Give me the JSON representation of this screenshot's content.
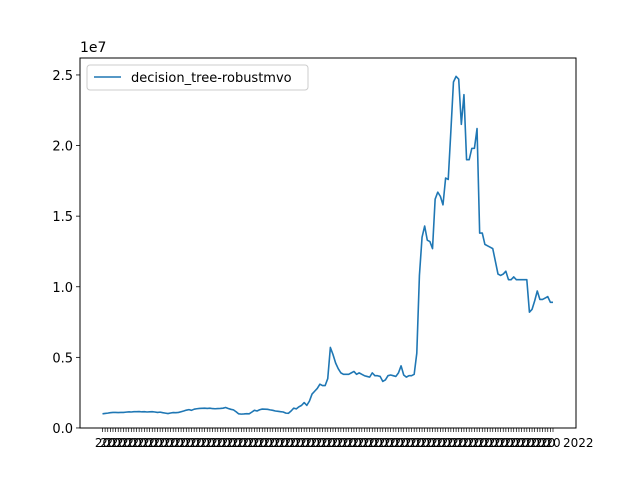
{
  "chart_data": {
    "type": "line",
    "multiplier_label": "1e7",
    "legend_position": "upper-left",
    "grid": false,
    "ylim": [
      -3000.0,
      26200000.0
    ],
    "y_ticks": [
      0,
      5000000,
      10000000,
      15000000,
      20000000,
      25000000
    ],
    "y_tick_labels": [
      "0.0",
      "0.5",
      "1.0",
      "1.5",
      "2.0",
      "2.5"
    ],
    "x_tick_label_fragments": [
      "20",
      "2022"
    ],
    "series": [
      {
        "name": "decision_tree-robustmvo",
        "color": "#1f77b4",
        "values": [
          1000000,
          1030000,
          1050000,
          1080000,
          1100000,
          1100000,
          1090000,
          1100000,
          1100000,
          1120000,
          1140000,
          1130000,
          1150000,
          1150000,
          1160000,
          1140000,
          1150000,
          1130000,
          1140000,
          1150000,
          1130000,
          1100000,
          1120000,
          1080000,
          1050000,
          1020000,
          1060000,
          1090000,
          1080000,
          1100000,
          1150000,
          1200000,
          1260000,
          1300000,
          1250000,
          1330000,
          1360000,
          1380000,
          1390000,
          1400000,
          1380000,
          1400000,
          1370000,
          1360000,
          1370000,
          1380000,
          1400000,
          1450000,
          1380000,
          1320000,
          1280000,
          1150000,
          1000000,
          980000,
          990000,
          1010000,
          1000000,
          1120000,
          1250000,
          1200000,
          1290000,
          1340000,
          1330000,
          1320000,
          1280000,
          1250000,
          1200000,
          1180000,
          1150000,
          1130000,
          1050000,
          1040000,
          1200000,
          1400000,
          1350000,
          1500000,
          1600000,
          1800000,
          1600000,
          1900000,
          2400000,
          2600000,
          2800000,
          3100000,
          3000000,
          3000000,
          3500000,
          5700000,
          5200000,
          4600000,
          4200000,
          3900000,
          3800000,
          3800000,
          3800000,
          3900000,
          4000000,
          3800000,
          3900000,
          3800000,
          3700000,
          3650000,
          3600000,
          3900000,
          3700000,
          3700000,
          3650000,
          3300000,
          3400000,
          3700000,
          3750000,
          3700000,
          3650000,
          3900000,
          4400000,
          3750000,
          3600000,
          3700000,
          3700000,
          3800000,
          5300000,
          10800000,
          13500000,
          14300000,
          13300000,
          13200000,
          12700000,
          16200000,
          16700000,
          16400000,
          15800000,
          17700000,
          17600000,
          21000000,
          24500000,
          24900000,
          24700000,
          21500000,
          23600000,
          19000000,
          19000000,
          19800000,
          19800000,
          21200000,
          13800000,
          13800000,
          13000000,
          12900000,
          12800000,
          12700000,
          11800000,
          10900000,
          10800000,
          10900000,
          11100000,
          10500000,
          10500000,
          10700000,
          10500000,
          10500000,
          10500000,
          10500000,
          10500000,
          8200000,
          8400000,
          9000000,
          9700000,
          9100000,
          9100000,
          9200000,
          9300000,
          8900000,
          8900000
        ]
      }
    ]
  }
}
